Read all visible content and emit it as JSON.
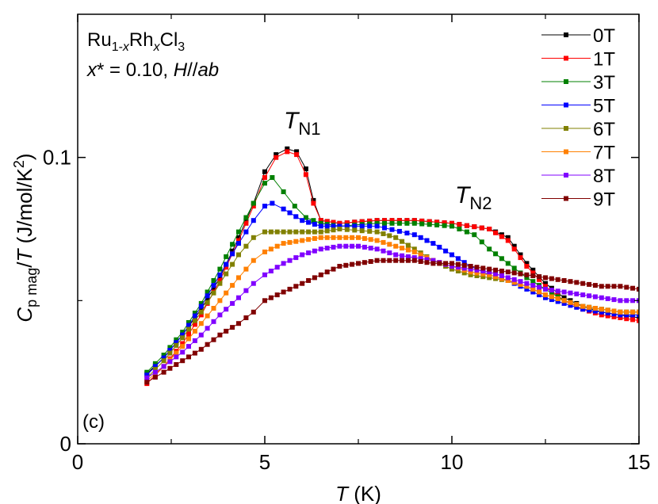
{
  "chart_data": {
    "type": "line",
    "xlim": [
      0,
      15
    ],
    "ylim": [
      0,
      0.15
    ],
    "xticks": [
      0,
      5,
      10,
      15
    ],
    "yticks": [
      0,
      0.1
    ],
    "xticks_text": [
      "0",
      "5",
      "10",
      "15"
    ],
    "yticks_text": [
      "0",
      "0.1"
    ],
    "xlabel": {
      "sym": "T",
      "unit": " (K)"
    },
    "ylabel": {
      "c": "C",
      "sub": "p mag",
      "slash": "/",
      "t": "T",
      "unit": " (J/mol/K",
      "exp": "2",
      "close": ")"
    },
    "annotations": {
      "formula": {
        "a": "Ru",
        "a_sub1": "1-",
        "a_subx": "x",
        "b": "Rh",
        "b_sub": "x",
        "c": "Cl",
        "c_sub": "3"
      },
      "condition": {
        "x": "x",
        "star": "* = 0.10, ",
        "h": "H",
        "sep": "//",
        "ab": "ab"
      },
      "tn1": {
        "t": "T",
        "sub": "N1"
      },
      "tn2": {
        "t": "T",
        "sub": "N2"
      },
      "panel": "(c)"
    },
    "legend_position": "top-right",
    "series": [
      {
        "name": "0T",
        "color": "#000000",
        "points": [
          [
            1.85,
            0.0245
          ],
          [
            2.3,
            0.03
          ],
          [
            2.8,
            0.038
          ],
          [
            3.3,
            0.047
          ],
          [
            3.8,
            0.058
          ],
          [
            4.3,
            0.072
          ],
          [
            4.7,
            0.084
          ],
          [
            5.0,
            0.095
          ],
          [
            5.3,
            0.101
          ],
          [
            5.6,
            0.103
          ],
          [
            5.85,
            0.102
          ],
          [
            6.1,
            0.096
          ],
          [
            6.3,
            0.085
          ],
          [
            6.5,
            0.078
          ],
          [
            7.0,
            0.077
          ],
          [
            8.0,
            0.078
          ],
          [
            9.0,
            0.078
          ],
          [
            10.0,
            0.077
          ],
          [
            11.0,
            0.075
          ],
          [
            11.5,
            0.072
          ],
          [
            12.0,
            0.063
          ],
          [
            12.5,
            0.056
          ],
          [
            13.0,
            0.051
          ],
          [
            13.5,
            0.048
          ],
          [
            14.0,
            0.046
          ],
          [
            14.5,
            0.045
          ],
          [
            15.0,
            0.044
          ]
        ]
      },
      {
        "name": "1T",
        "color": "#ff0000",
        "points": [
          [
            1.85,
            0.021
          ],
          [
            2.3,
            0.027
          ],
          [
            2.8,
            0.035
          ],
          [
            3.3,
            0.045
          ],
          [
            3.8,
            0.057
          ],
          [
            4.3,
            0.071
          ],
          [
            4.7,
            0.083
          ],
          [
            5.0,
            0.093
          ],
          [
            5.3,
            0.1
          ],
          [
            5.6,
            0.102
          ],
          [
            5.85,
            0.101
          ],
          [
            6.1,
            0.094
          ],
          [
            6.3,
            0.084
          ],
          [
            6.5,
            0.078
          ],
          [
            7.0,
            0.077
          ],
          [
            8.0,
            0.078
          ],
          [
            9.0,
            0.078
          ],
          [
            10.0,
            0.077
          ],
          [
            11.0,
            0.075
          ],
          [
            11.5,
            0.071
          ],
          [
            12.0,
            0.062
          ],
          [
            12.5,
            0.055
          ],
          [
            13.0,
            0.05
          ],
          [
            13.5,
            0.047
          ],
          [
            14.0,
            0.045
          ],
          [
            14.5,
            0.044
          ],
          [
            15.0,
            0.043
          ]
        ]
      },
      {
        "name": "3T",
        "color": "#008000",
        "points": [
          [
            1.85,
            0.025
          ],
          [
            2.3,
            0.031
          ],
          [
            2.8,
            0.039
          ],
          [
            3.3,
            0.049
          ],
          [
            3.8,
            0.061
          ],
          [
            4.3,
            0.074
          ],
          [
            4.7,
            0.084
          ],
          [
            5.0,
            0.091
          ],
          [
            5.2,
            0.093
          ],
          [
            5.5,
            0.088
          ],
          [
            5.8,
            0.083
          ],
          [
            6.1,
            0.079
          ],
          [
            6.5,
            0.077
          ],
          [
            7.0,
            0.076
          ],
          [
            8.0,
            0.077
          ],
          [
            9.0,
            0.077
          ],
          [
            10.0,
            0.076
          ],
          [
            10.6,
            0.073
          ],
          [
            11.0,
            0.068
          ],
          [
            11.5,
            0.063
          ],
          [
            12.0,
            0.058
          ],
          [
            12.5,
            0.054
          ],
          [
            13.0,
            0.05
          ],
          [
            13.5,
            0.048
          ],
          [
            14.0,
            0.047
          ],
          [
            14.5,
            0.046
          ],
          [
            15.0,
            0.046
          ]
        ]
      },
      {
        "name": "5T",
        "color": "#0000ff",
        "points": [
          [
            1.85,
            0.024
          ],
          [
            2.3,
            0.03
          ],
          [
            2.8,
            0.038
          ],
          [
            3.3,
            0.048
          ],
          [
            3.8,
            0.059
          ],
          [
            4.3,
            0.07
          ],
          [
            4.7,
            0.078
          ],
          [
            5.0,
            0.083
          ],
          [
            5.2,
            0.084
          ],
          [
            5.5,
            0.082
          ],
          [
            6.0,
            0.078
          ],
          [
            6.5,
            0.076
          ],
          [
            7.0,
            0.076
          ],
          [
            8.0,
            0.076
          ],
          [
            9.0,
            0.073
          ],
          [
            9.5,
            0.07
          ],
          [
            10.0,
            0.066
          ],
          [
            10.5,
            0.062
          ],
          [
            11.0,
            0.059
          ],
          [
            11.5,
            0.057
          ],
          [
            12.0,
            0.054
          ],
          [
            12.5,
            0.051
          ],
          [
            13.0,
            0.049
          ],
          [
            13.5,
            0.047
          ],
          [
            14.0,
            0.046
          ],
          [
            14.5,
            0.045
          ],
          [
            15.0,
            0.045
          ]
        ]
      },
      {
        "name": "6T",
        "color": "#808000",
        "points": [
          [
            1.85,
            0.023
          ],
          [
            2.3,
            0.029
          ],
          [
            2.8,
            0.037
          ],
          [
            3.3,
            0.046
          ],
          [
            3.8,
            0.056
          ],
          [
            4.3,
            0.066
          ],
          [
            4.7,
            0.072
          ],
          [
            5.0,
            0.074
          ],
          [
            5.5,
            0.074
          ],
          [
            6.0,
            0.074
          ],
          [
            6.5,
            0.074
          ],
          [
            7.0,
            0.075
          ],
          [
            8.0,
            0.074
          ],
          [
            8.5,
            0.072
          ],
          [
            9.0,
            0.068
          ],
          [
            9.5,
            0.064
          ],
          [
            10.0,
            0.061
          ],
          [
            10.5,
            0.059
          ],
          [
            11.0,
            0.058
          ],
          [
            11.5,
            0.057
          ],
          [
            12.0,
            0.055
          ],
          [
            12.5,
            0.052
          ],
          [
            13.0,
            0.05
          ],
          [
            13.5,
            0.048
          ],
          [
            14.0,
            0.047
          ],
          [
            14.5,
            0.046
          ],
          [
            15.0,
            0.046
          ]
        ]
      },
      {
        "name": "7T",
        "color": "#ff8000",
        "points": [
          [
            1.85,
            0.022
          ],
          [
            2.3,
            0.027
          ],
          [
            2.8,
            0.034
          ],
          [
            3.3,
            0.042
          ],
          [
            3.8,
            0.05
          ],
          [
            4.3,
            0.058
          ],
          [
            4.7,
            0.064
          ],
          [
            5.0,
            0.067
          ],
          [
            5.5,
            0.07
          ],
          [
            6.0,
            0.071
          ],
          [
            6.5,
            0.072
          ],
          [
            7.0,
            0.072
          ],
          [
            7.5,
            0.072
          ],
          [
            8.0,
            0.071
          ],
          [
            8.5,
            0.069
          ],
          [
            9.0,
            0.067
          ],
          [
            9.5,
            0.064
          ],
          [
            10.0,
            0.062
          ],
          [
            10.5,
            0.06
          ],
          [
            11.0,
            0.059
          ],
          [
            11.5,
            0.057
          ],
          [
            12.0,
            0.055
          ],
          [
            12.5,
            0.052
          ],
          [
            13.0,
            0.05
          ],
          [
            13.5,
            0.048
          ],
          [
            14.0,
            0.047
          ],
          [
            14.5,
            0.046
          ],
          [
            15.0,
            0.046
          ]
        ]
      },
      {
        "name": "8T",
        "color": "#8000ff",
        "points": [
          [
            1.85,
            0.023
          ],
          [
            2.3,
            0.027
          ],
          [
            2.8,
            0.032
          ],
          [
            3.3,
            0.038
          ],
          [
            3.8,
            0.045
          ],
          [
            4.3,
            0.051
          ],
          [
            4.7,
            0.056
          ],
          [
            5.0,
            0.059
          ],
          [
            5.5,
            0.063
          ],
          [
            6.0,
            0.066
          ],
          [
            6.5,
            0.068
          ],
          [
            7.0,
            0.069
          ],
          [
            7.5,
            0.069
          ],
          [
            8.0,
            0.068
          ],
          [
            8.5,
            0.066
          ],
          [
            9.0,
            0.065
          ],
          [
            9.5,
            0.064
          ],
          [
            10.0,
            0.062
          ],
          [
            10.5,
            0.061
          ],
          [
            11.0,
            0.06
          ],
          [
            11.5,
            0.058
          ],
          [
            12.0,
            0.056
          ],
          [
            12.5,
            0.054
          ],
          [
            13.0,
            0.053
          ],
          [
            13.5,
            0.052
          ],
          [
            14.0,
            0.051
          ],
          [
            14.5,
            0.05
          ],
          [
            15.0,
            0.05
          ]
        ]
      },
      {
        "name": "9T",
        "color": "#800000",
        "points": [
          [
            1.85,
            0.0215
          ],
          [
            2.3,
            0.025
          ],
          [
            2.8,
            0.029
          ],
          [
            3.3,
            0.033
          ],
          [
            3.8,
            0.038
          ],
          [
            4.3,
            0.042
          ],
          [
            4.7,
            0.046
          ],
          [
            5.0,
            0.05
          ],
          [
            5.5,
            0.053
          ],
          [
            6.0,
            0.056
          ],
          [
            6.5,
            0.059
          ],
          [
            7.0,
            0.062
          ],
          [
            7.5,
            0.063
          ],
          [
            8.0,
            0.064
          ],
          [
            8.5,
            0.064
          ],
          [
            9.0,
            0.064
          ],
          [
            9.5,
            0.063
          ],
          [
            10.0,
            0.063
          ],
          [
            10.5,
            0.062
          ],
          [
            11.0,
            0.061
          ],
          [
            11.5,
            0.06
          ],
          [
            12.0,
            0.059
          ],
          [
            12.5,
            0.058
          ],
          [
            13.0,
            0.057
          ],
          [
            13.5,
            0.056
          ],
          [
            14.0,
            0.055
          ],
          [
            14.5,
            0.055
          ],
          [
            15.0,
            0.054
          ]
        ]
      }
    ]
  }
}
